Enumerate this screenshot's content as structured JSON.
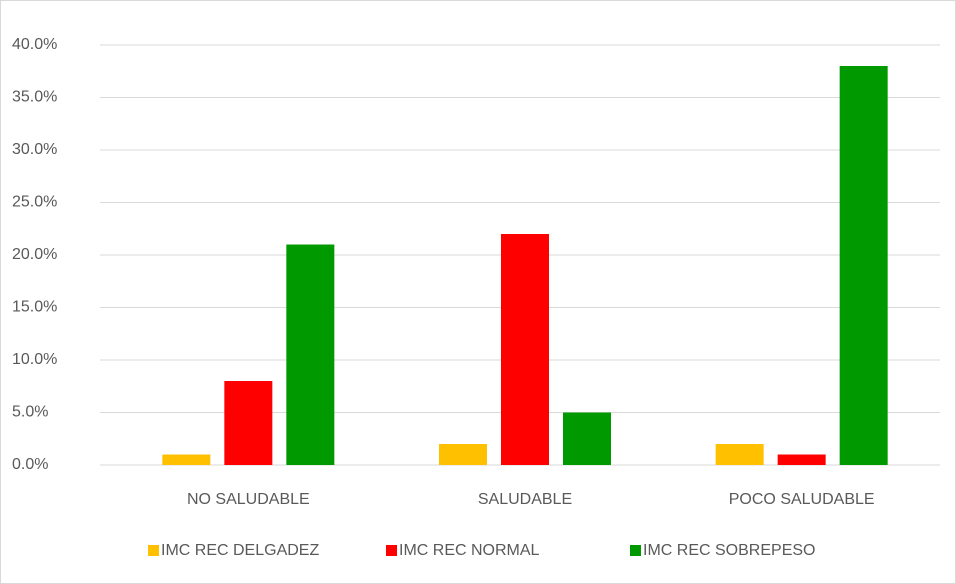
{
  "chart_data": {
    "type": "bar",
    "categories": [
      "NO SALUDABLE",
      "SALUDABLE",
      "POCO SALUDABLE"
    ],
    "series": [
      {
        "name": "IMC REC DELGADEZ",
        "color": "#ffc000",
        "values": [
          1,
          2,
          2
        ]
      },
      {
        "name": "IMC REC NORMAL",
        "color": "#ff0000",
        "values": [
          8,
          22,
          1
        ]
      },
      {
        "name": "IMC REC SOBREPESO",
        "color": "#009900",
        "values": [
          21,
          5,
          38
        ]
      }
    ],
    "ylim": [
      0,
      40
    ],
    "yticks": [
      {
        "value": 0,
        "label": "0.0%"
      },
      {
        "value": 5,
        "label": "5.0%"
      },
      {
        "value": 10,
        "label": "10.0%"
      },
      {
        "value": 15,
        "label": "15.0%"
      },
      {
        "value": 20,
        "label": "20.0%"
      },
      {
        "value": 25,
        "label": "25.0%"
      },
      {
        "value": 30,
        "label": "30.0%"
      },
      {
        "value": 35,
        "label": "35.0%"
      },
      {
        "value": 40,
        "label": "40.0%"
      }
    ],
    "grid": true,
    "legend": "bottom"
  }
}
